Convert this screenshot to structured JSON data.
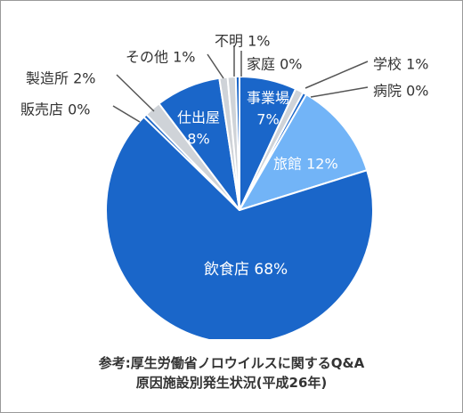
{
  "chart_data": {
    "type": "pie",
    "slices": [
      {
        "name": "事業場",
        "value": 7,
        "color": "#1a66c9"
      },
      {
        "name": "学校",
        "value": 1,
        "color": "#cfd3d8"
      },
      {
        "name": "病院",
        "value": 0,
        "color": "#1a66c9"
      },
      {
        "name": "旅館",
        "value": 12,
        "color": "#72b4f7"
      },
      {
        "name": "飲食店",
        "value": 68,
        "color": "#1a66c9"
      },
      {
        "name": "販売店",
        "value": 0,
        "color": "#1a66c9"
      },
      {
        "name": "製造所",
        "value": 2,
        "color": "#cfd3d8"
      },
      {
        "name": "仕出屋",
        "value": 8,
        "color": "#1a66c9"
      },
      {
        "name": "その他",
        "value": 1,
        "color": "#cfd3d8"
      },
      {
        "name": "不明",
        "value": 1,
        "color": "#cfd3d8"
      },
      {
        "name": "家庭",
        "value": 0,
        "color": "#1a66c9"
      }
    ],
    "value_suffix": "%",
    "start_angle_deg": 0,
    "direction": "clockwise"
  },
  "source": {
    "line1": "参考:厚生労働省ノロウイルスに関するQ&A",
    "line2": "原因施設別発生状況(平成26年)"
  }
}
